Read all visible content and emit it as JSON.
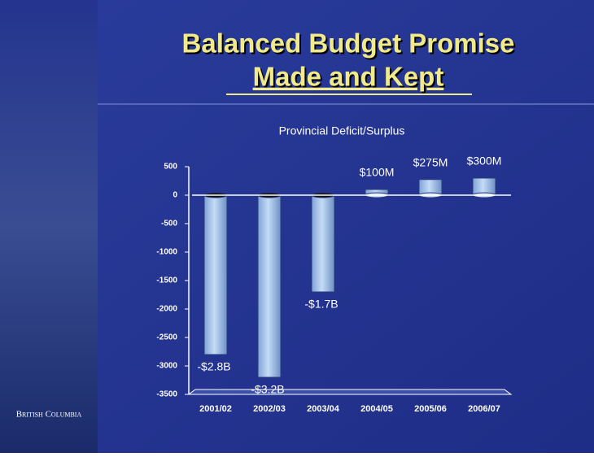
{
  "header": {
    "title_line1": "Balanced Budget Promise",
    "title_line2": "Made and Kept"
  },
  "logo": "British Columbia",
  "chart_data": {
    "type": "bar",
    "title": "Provincial Deficit/Surplus",
    "categories": [
      "2001/02",
      "2002/03",
      "2003/04",
      "2004/05",
      "2005/06",
      "2006/07"
    ],
    "values": [
      -2800,
      -3200,
      -1700,
      100,
      275,
      300
    ],
    "value_labels": [
      "-$2.8B",
      "-$3.2B",
      "-$1.7B",
      "$100M",
      "$275M",
      "$300M"
    ],
    "color": "#a9c8ec",
    "ylim": [
      -3500,
      500
    ],
    "yticks": [
      500,
      0,
      -500,
      -1000,
      -1500,
      -2000,
      -2500,
      -3000,
      -3500
    ]
  }
}
